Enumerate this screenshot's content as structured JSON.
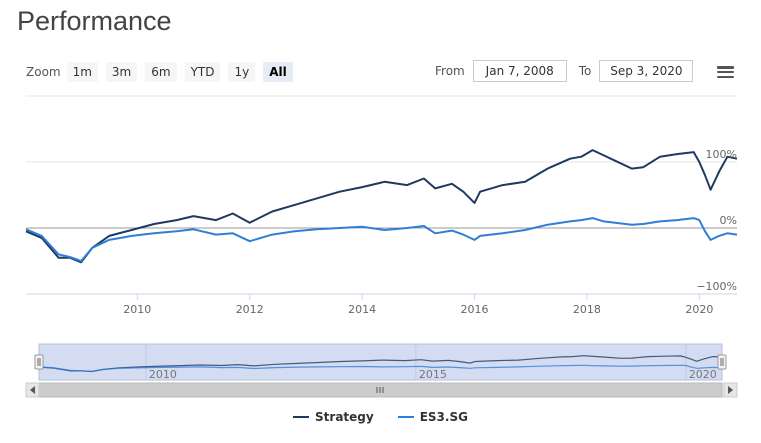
{
  "title": "Performance",
  "range_selector": {
    "zoom_label": "Zoom",
    "buttons": [
      "1m",
      "3m",
      "6m",
      "YTD",
      "1y",
      "All"
    ],
    "active": "All"
  },
  "date_range": {
    "from_label": "From",
    "from_value": "Jan 7, 2008",
    "to_label": "To",
    "to_value": "Sep 3, 2020"
  },
  "menu_icon": "hamburger-menu-icon",
  "colors": {
    "strategy": "#1f3a5f",
    "es3": "#2f7ed8",
    "navigator_fill": "#d4dcf2"
  },
  "chart_data": {
    "type": "line",
    "title": "",
    "xlabel": "",
    "ylabel": "",
    "xlim": [
      2008.02,
      2020.67
    ],
    "ylim": [
      -100,
      200
    ],
    "y_ticks": [
      0,
      100,
      -100
    ],
    "y_tick_labels": [
      "0%",
      "100%",
      "−100%"
    ],
    "x_ticks": [
      2010,
      2012,
      2014,
      2016,
      2018,
      2020
    ],
    "x_tick_labels": [
      "2010",
      "2012",
      "2014",
      "2016",
      "2018",
      "2020"
    ],
    "grid": true,
    "legend_position": "bottom-center",
    "series": [
      {
        "name": "Strategy",
        "color": "#1f3a5f",
        "x": [
          2008.02,
          2008.3,
          2008.6,
          2008.8,
          2009.0,
          2009.2,
          2009.5,
          2009.9,
          2010.3,
          2010.7,
          2011.0,
          2011.4,
          2011.7,
          2012.0,
          2012.4,
          2012.8,
          2013.2,
          2013.6,
          2014.0,
          2014.4,
          2014.8,
          2015.1,
          2015.3,
          2015.6,
          2015.8,
          2016.0,
          2016.1,
          2016.5,
          2016.9,
          2017.3,
          2017.7,
          2017.9,
          2018.1,
          2018.3,
          2018.5,
          2018.8,
          2019.0,
          2019.3,
          2019.6,
          2019.9,
          2020.0,
          2020.1,
          2020.2,
          2020.35,
          2020.5,
          2020.67
        ],
        "values": [
          -5,
          -15,
          -45,
          -45,
          -52,
          -30,
          -12,
          -3,
          6,
          12,
          18,
          12,
          22,
          8,
          25,
          35,
          45,
          55,
          62,
          70,
          65,
          75,
          60,
          67,
          55,
          38,
          55,
          65,
          70,
          90,
          105,
          108,
          118,
          110,
          102,
          90,
          92,
          108,
          112,
          115,
          100,
          80,
          58,
          85,
          108,
          105
        ]
      },
      {
        "name": "ES3.SG",
        "color": "#2f7ed8",
        "x": [
          2008.02,
          2008.3,
          2008.6,
          2008.8,
          2009.0,
          2009.2,
          2009.5,
          2009.9,
          2010.3,
          2010.7,
          2011.0,
          2011.4,
          2011.7,
          2012.0,
          2012.4,
          2012.8,
          2013.2,
          2013.6,
          2014.0,
          2014.4,
          2014.8,
          2015.1,
          2015.3,
          2015.6,
          2015.8,
          2016.0,
          2016.1,
          2016.5,
          2016.9,
          2017.3,
          2017.7,
          2017.9,
          2018.1,
          2018.3,
          2018.5,
          2018.8,
          2019.0,
          2019.3,
          2019.6,
          2019.9,
          2020.0,
          2020.1,
          2020.2,
          2020.35,
          2020.5,
          2020.67
        ],
        "values": [
          -2,
          -12,
          -40,
          -44,
          -50,
          -30,
          -18,
          -12,
          -8,
          -5,
          -2,
          -10,
          -8,
          -20,
          -10,
          -5,
          -2,
          0,
          2,
          -3,
          0,
          3,
          -8,
          -4,
          -10,
          -18,
          -12,
          -8,
          -3,
          5,
          10,
          12,
          15,
          10,
          8,
          5,
          6,
          10,
          12,
          15,
          12,
          -5,
          -18,
          -12,
          -8,
          -10
        ]
      }
    ],
    "navigator": {
      "x_ticks": [
        2010,
        2015,
        2020
      ],
      "x_tick_labels": [
        "2010",
        "2015",
        "2020"
      ]
    }
  },
  "legend": [
    {
      "name": "Strategy"
    },
    {
      "name": "ES3.SG"
    }
  ]
}
